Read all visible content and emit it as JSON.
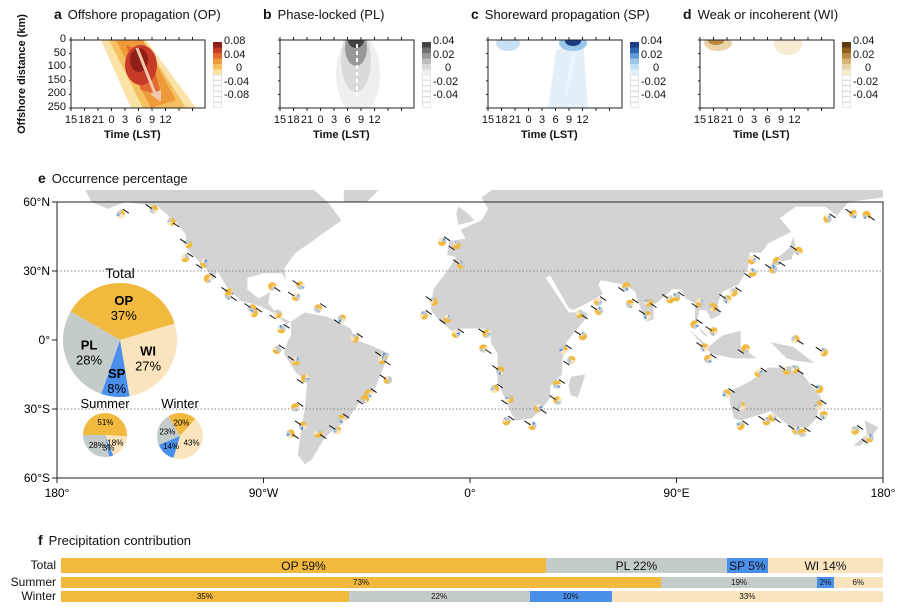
{
  "colors": {
    "OP": "#F2B93F",
    "PL": "#C3CBCB",
    "SP": "#4A8FEA",
    "WI": "#F9E4BD",
    "land": "#D3D3D3"
  },
  "panels": [
    {
      "letter": "a",
      "title": "Offshore propagation (OP)",
      "cbar": [
        "0.08",
        "0.04",
        "0",
        "-0.04",
        "-0.08"
      ],
      "scheme": "OP"
    },
    {
      "letter": "b",
      "title": "Phase-locked (PL)",
      "cbar": [
        "0.04",
        "0.02",
        "0",
        "-0.02",
        "-0.04"
      ],
      "scheme": "PL"
    },
    {
      "letter": "c",
      "title": "Shoreward propagation (SP)",
      "cbar": [
        "0.04",
        "0.02",
        "0",
        "-0.02",
        "-0.04"
      ],
      "scheme": "SP"
    },
    {
      "letter": "d",
      "title": "Weak or incoherent (WI)",
      "cbar": [
        "0.04",
        "0.02",
        "0",
        "-0.02",
        "-0.04"
      ],
      "scheme": "WI"
    }
  ],
  "ylabel": "Offshore distance (km)",
  "yticks": [
    "0",
    "50",
    "100",
    "150",
    "200",
    "250"
  ],
  "xticks": [
    "15",
    "18",
    "21",
    "0",
    "3",
    "6",
    "9",
    "12"
  ],
  "xlabel": "Time (LST)",
  "map": {
    "letter": "e",
    "title": "Occurrence percentage",
    "lat_ticks": [
      "60°N",
      "30°N",
      "0°",
      "30°S",
      "60°S"
    ],
    "lon_ticks": [
      "180°",
      "90°W",
      "0°",
      "90°E",
      "180°"
    ]
  },
  "chart_data": [
    {
      "type": "pie",
      "title": "Total",
      "labels": [
        "OP",
        "WI",
        "SP",
        "PL"
      ],
      "values": [
        37,
        27,
        8,
        28
      ],
      "text": [
        "37%",
        "27%",
        "8%",
        "28%"
      ]
    },
    {
      "type": "pie",
      "title": "Summer",
      "labels": [
        "OP",
        "WI",
        "SP",
        "PL"
      ],
      "values": [
        51,
        18,
        3,
        28
      ],
      "text": [
        "51%",
        "18%",
        "3%",
        "28%"
      ]
    },
    {
      "type": "pie",
      "title": "Winter",
      "labels": [
        "OP",
        "WI",
        "SP",
        "PL"
      ],
      "values": [
        20,
        43,
        14,
        23
      ],
      "text": [
        "20%",
        "43%",
        "14%",
        "23%"
      ]
    },
    {
      "type": "bar",
      "title": "Precipitation contribution",
      "letter": "f",
      "stacked": true,
      "orientation": "horizontal",
      "categories": [
        "Total",
        "Summer",
        "Winter"
      ],
      "series": [
        {
          "name": "OP",
          "values": [
            59,
            73,
            35
          ]
        },
        {
          "name": "PL",
          "values": [
            22,
            19,
            22
          ]
        },
        {
          "name": "SP",
          "values": [
            5,
            2,
            10
          ]
        },
        {
          "name": "WI",
          "values": [
            14,
            6,
            33
          ]
        }
      ],
      "labels": [
        [
          "OP 59%",
          "PL 22%",
          "SP 5%",
          "WI 14%"
        ],
        [
          "73%",
          "19%",
          "2%",
          "6%"
        ],
        [
          "35%",
          "22%",
          "10%",
          "33%"
        ]
      ]
    }
  ]
}
